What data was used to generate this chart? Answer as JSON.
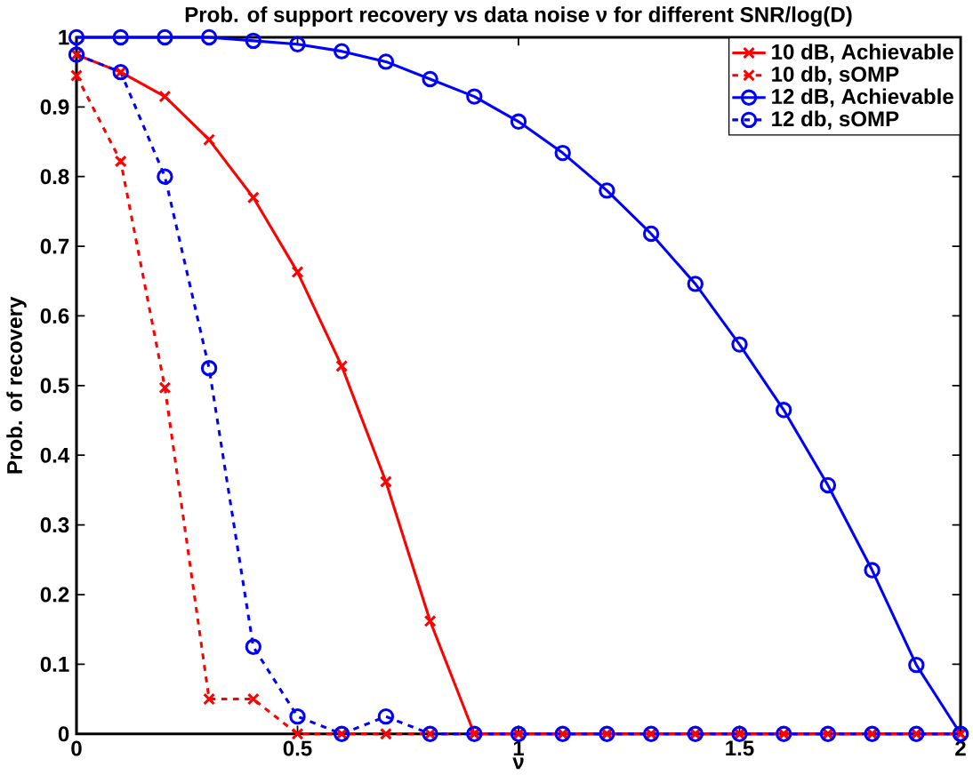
{
  "chart_data": {
    "type": "line",
    "title": "Prob. of support recovery vs data noise ν for different SNR/log(D)",
    "xlabel": "ν",
    "ylabel": "Prob. of recovery",
    "x": [
      0,
      0.1,
      0.2,
      0.3,
      0.4,
      0.5,
      0.6,
      0.7,
      0.8,
      0.9,
      1.0,
      1.1,
      1.2,
      1.3,
      1.4,
      1.5,
      1.6,
      1.7,
      1.8,
      1.9,
      2.0
    ],
    "series": [
      {
        "name": "10 dB, Achievable",
        "color": "#ff0000",
        "marker": "cross",
        "line_style": "solid",
        "values": [
          0.975,
          0.95,
          0.915,
          0.853,
          0.77,
          0.663,
          0.528,
          0.362,
          0.162,
          0,
          0,
          0,
          0,
          0,
          0,
          0,
          0,
          0,
          0,
          0,
          0
        ]
      },
      {
        "name": "10 db, sOMP",
        "color": "#ff0000",
        "marker": "cross",
        "line_style": "dashed",
        "values": [
          0.945,
          0.822,
          0.497,
          0.05,
          0.05,
          0,
          0,
          0,
          0,
          0,
          0,
          0,
          0,
          0,
          0,
          0,
          0,
          0,
          0,
          0,
          0
        ]
      },
      {
        "name": "12 dB, Achievable",
        "color": "#0000ff",
        "marker": "circle",
        "line_style": "solid",
        "values": [
          1,
          1,
          1,
          1,
          0.995,
          0.99,
          0.98,
          0.965,
          0.94,
          0.915,
          0.879,
          0.834,
          0.78,
          0.718,
          0.646,
          0.559,
          0.465,
          0.357,
          0.235,
          0.099,
          0
        ]
      },
      {
        "name": "12 db, sOMP",
        "color": "#0000ff",
        "marker": "circle",
        "line_style": "dashed",
        "values": [
          0.975,
          0.95,
          0.8,
          0.525,
          0.125,
          0.025,
          0,
          0.025,
          0,
          0,
          0,
          0,
          0,
          0,
          0,
          0,
          0,
          0,
          0,
          0,
          0
        ]
      }
    ],
    "xlim": [
      0,
      2
    ],
    "xticks": [
      0,
      0.5,
      1,
      1.5,
      2
    ],
    "ylim": [
      0,
      1
    ],
    "yticks": [
      0,
      0.1,
      0.2,
      0.3,
      0.4,
      0.5,
      0.6,
      0.7,
      0.8,
      0.9,
      1
    ],
    "grid": false,
    "legend": "top right"
  }
}
